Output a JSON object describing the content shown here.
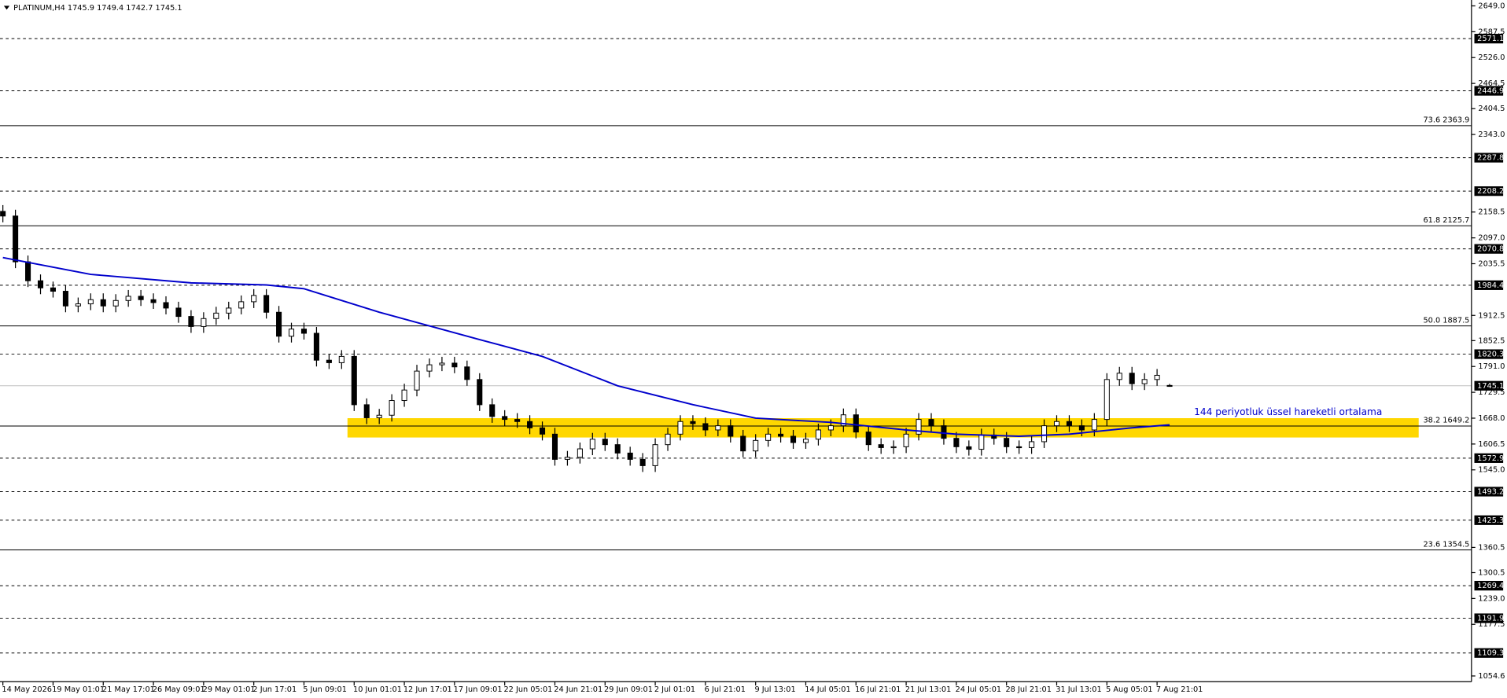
{
  "chart_data": {
    "type": "candlestick",
    "header": "PLATINUM,H4  1745.9 1749.4 1742.7 1745.1",
    "categories": [
      "14 May 2026",
      null,
      null,
      null,
      "19 May 01:01",
      null,
      null,
      null,
      "21 May 17:01",
      null,
      null,
      null,
      "26 May 09:01",
      null,
      null,
      null,
      "29 May 01:01",
      null,
      null,
      null,
      "2 Jun 17:01",
      null,
      null,
      null,
      "5 Jun 09:01",
      null,
      null,
      null,
      "10 Jun 01:01",
      null,
      null,
      null,
      "12 Jun 17:01",
      null,
      null,
      null,
      "17 Jun 09:01",
      null,
      null,
      null,
      "22 Jun 05:01",
      null,
      null,
      null,
      "24 Jun 21:01",
      null,
      null,
      null,
      "29 Jun 09:01",
      null,
      null,
      null,
      "2 Jul 01:01",
      null,
      null,
      null,
      "6 Jul 21:01",
      null,
      null,
      null,
      "9 Jul 13:01",
      null,
      null,
      null,
      "14 Jul 05:01",
      null,
      null,
      null,
      "16 Jul 21:01",
      null,
      null,
      null,
      "21 Jul 13:01",
      null,
      null,
      null,
      "24 Jul 05:01",
      null,
      null,
      null,
      "28 Jul 21:01",
      null,
      null,
      null,
      "31 Jul 13:01",
      null,
      null,
      null,
      "5 Aug 05:01",
      null,
      null,
      null,
      "7 Aug 21:01",
      null
    ],
    "open": [
      2160,
      2149,
      2040,
      1995,
      1978,
      1970,
      1935,
      1940,
      1950,
      1935,
      1948,
      1958,
      1950,
      1943,
      1930,
      1910,
      1886,
      1905,
      1918,
      1930,
      1945,
      1960,
      1920,
      1863,
      1880,
      1870,
      1806,
      1800,
      1815,
      1700,
      1669,
      1675,
      1710,
      1735,
      1780,
      1795,
      1799,
      1790,
      1760,
      1700,
      1672,
      1665,
      1660,
      1645,
      1630,
      1570,
      1575,
      1595,
      1618,
      1605,
      1585,
      1570,
      1555,
      1605,
      1630,
      1660,
      1655,
      1640,
      1650,
      1625,
      1590,
      1615,
      1630,
      1625,
      1610,
      1618,
      1640,
      1650,
      1676,
      1635,
      1605,
      1598,
      1600,
      1630,
      1665,
      1650,
      1620,
      1600,
      1594,
      1628,
      1620,
      1600,
      1598,
      1612,
      1650,
      1660,
      1650,
      1640,
      1665,
      1760,
      1775,
      1750,
      1760,
      1745.9
    ],
    "high": [
      2175,
      2164,
      2055,
      2010,
      1993,
      1985,
      1955,
      1965,
      1965,
      1963,
      1973,
      1973,
      1965,
      1958,
      1945,
      1925,
      1920,
      1933,
      1945,
      1960,
      1975,
      1975,
      1935,
      1895,
      1895,
      1885,
      1821,
      1830,
      1830,
      1715,
      1690,
      1725,
      1750,
      1795,
      1810,
      1814,
      1814,
      1805,
      1775,
      1715,
      1687,
      1680,
      1675,
      1660,
      1645,
      1590,
      1610,
      1633,
      1633,
      1620,
      1600,
      1585,
      1620,
      1645,
      1675,
      1675,
      1670,
      1665,
      1665,
      1640,
      1630,
      1645,
      1645,
      1640,
      1633,
      1655,
      1665,
      1691,
      1691,
      1650,
      1620,
      1615,
      1645,
      1680,
      1680,
      1665,
      1635,
      1615,
      1643,
      1643,
      1635,
      1615,
      1627,
      1665,
      1675,
      1675,
      1665,
      1680,
      1775,
      1790,
      1790,
      1775,
      1785,
      1749.4
    ],
    "low": [
      2134,
      2025,
      1980,
      1963,
      1955,
      1920,
      1920,
      1925,
      1920,
      1920,
      1933,
      1935,
      1928,
      1915,
      1895,
      1871,
      1871,
      1890,
      1903,
      1915,
      1930,
      1905,
      1848,
      1848,
      1855,
      1791,
      1785,
      1785,
      1685,
      1654,
      1654,
      1660,
      1695,
      1720,
      1765,
      1780,
      1775,
      1745,
      1685,
      1657,
      1650,
      1645,
      1630,
      1615,
      1555,
      1555,
      1560,
      1580,
      1590,
      1570,
      1555,
      1540,
      1540,
      1590,
      1615,
      1640,
      1625,
      1625,
      1610,
      1575,
      1575,
      1600,
      1610,
      1595,
      1595,
      1603,
      1625,
      1635,
      1620,
      1590,
      1583,
      1583,
      1585,
      1615,
      1635,
      1605,
      1585,
      1579,
      1579,
      1605,
      1585,
      1583,
      1583,
      1597,
      1635,
      1635,
      1625,
      1625,
      1650,
      1745,
      1735,
      1735,
      1745,
      1742.7
    ],
    "close": [
      2149,
      2040,
      1995,
      1978,
      1970,
      1935,
      1940,
      1950,
      1935,
      1948,
      1958,
      1950,
      1943,
      1930,
      1910,
      1886,
      1905,
      1918,
      1930,
      1945,
      1960,
      1920,
      1863,
      1880,
      1870,
      1806,
      1800,
      1815,
      1700,
      1669,
      1675,
      1710,
      1735,
      1780,
      1795,
      1799,
      1790,
      1760,
      1700,
      1672,
      1665,
      1660,
      1645,
      1630,
      1570,
      1575,
      1595,
      1618,
      1605,
      1585,
      1570,
      1555,
      1605,
      1630,
      1660,
      1655,
      1640,
      1650,
      1625,
      1590,
      1615,
      1630,
      1625,
      1610,
      1618,
      1640,
      1650,
      1676,
      1635,
      1605,
      1598,
      1600,
      1630,
      1665,
      1650,
      1620,
      1600,
      1594,
      1628,
      1620,
      1600,
      1598,
      1612,
      1650,
      1660,
      1650,
      1640,
      1665,
      1760,
      1775,
      1750,
      1760,
      1770,
      1745.1
    ],
    "ema": {
      "color": "#0000cc",
      "x": [
        0,
        7,
        15,
        21,
        24,
        30,
        38,
        43,
        49,
        55,
        60,
        66,
        72,
        76,
        81,
        85,
        90,
        93
      ],
      "values": [
        2050,
        2010,
        1990,
        1985,
        1976,
        1920,
        1855,
        1815,
        1745,
        1700,
        1668,
        1658,
        1640,
        1630,
        1625,
        1630,
        1645,
        1652
      ]
    },
    "annotation": "144 periyotluk üssel hareketli ortalama",
    "zone": {
      "high": 1668,
      "low": 1622,
      "color": "#ffd700"
    },
    "current": {
      "value": 1745.1,
      "label": "1745.1"
    },
    "levels": [
      {
        "value": 2571.1,
        "label": "2571.1"
      },
      {
        "value": 2446.9,
        "label": "2446.9"
      },
      {
        "value": 2287.8,
        "label": "2287.8"
      },
      {
        "value": 2208.2,
        "label": "2208.2"
      },
      {
        "value": 2070.8,
        "label": "2070.8"
      },
      {
        "value": 1984.4,
        "label": "1984.4"
      },
      {
        "value": 1820.3,
        "label": "1820.3"
      },
      {
        "value": 1572.9,
        "label": "1572.9"
      },
      {
        "value": 1493.2,
        "label": "1493.2"
      },
      {
        "value": 1425.3,
        "label": "1425.3"
      },
      {
        "value": 1269.4,
        "label": "1269.4"
      },
      {
        "value": 1191.9,
        "label": "1191.9"
      },
      {
        "value": 1109.3,
        "label": "1109.3"
      }
    ],
    "fib": [
      {
        "value": 2363.9,
        "label": "73.6 2363.9"
      },
      {
        "value": 2125.7,
        "label": "61.8 2125.7"
      },
      {
        "value": 1887.5,
        "label": "50.0 1887.5"
      },
      {
        "value": 1649.2,
        "label": "38.2 1649.2"
      },
      {
        "value": 1354.5,
        "label": "23.6 1354.5"
      }
    ],
    "ylim": [
      1041,
      2663
    ],
    "yticks": [
      {
        "value": 2649,
        "label": "2649.0"
      },
      {
        "value": 2587.5,
        "label": "2587.5"
      },
      {
        "value": 2526,
        "label": "2526.0"
      },
      {
        "value": 2464.5,
        "label": "2464.5"
      },
      {
        "value": 2404.5,
        "label": "2404.5"
      },
      {
        "value": 2343,
        "label": "2343.0"
      },
      {
        "value": 2158.5,
        "label": "2158.5"
      },
      {
        "value": 2097,
        "label": "2097.0"
      },
      {
        "value": 2035.5,
        "label": "2035.5"
      },
      {
        "value": 1912.5,
        "label": "1912.5"
      },
      {
        "value": 1852.5,
        "label": "1852.5"
      },
      {
        "value": 1791,
        "label": "1791.0"
      },
      {
        "value": 1729.5,
        "label": "1729.5"
      },
      {
        "value": 1668,
        "label": "1668.0"
      },
      {
        "value": 1606.5,
        "label": "1606.5"
      },
      {
        "value": 1545,
        "label": "1545.0"
      },
      {
        "value": 1360.5,
        "label": "1360.5"
      },
      {
        "value": 1300.5,
        "label": "1300.5"
      },
      {
        "value": 1239,
        "label": "1239.0"
      },
      {
        "value": 1177.5,
        "label": "1177.5"
      },
      {
        "value": 1054.6,
        "label": "1054.6"
      }
    ]
  }
}
